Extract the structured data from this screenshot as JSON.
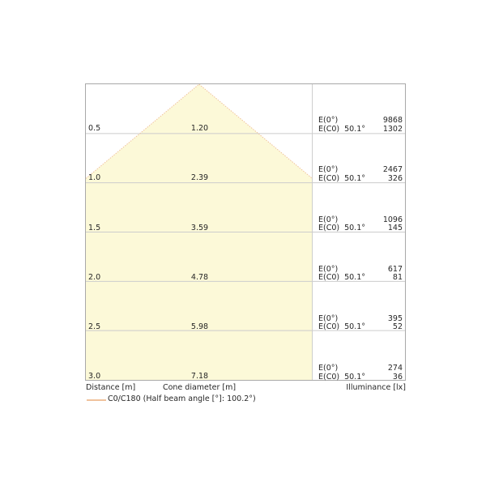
{
  "figure": {
    "axis": {
      "distance": "Distance [m]",
      "cone_diameter": "Cone diameter [m]",
      "illuminance": "Illuminance [lx]"
    },
    "legend": {
      "label": "C0/C180 (Half beam angle [°]: 100.2°)"
    },
    "e_labels": {
      "e0": "E(0°)",
      "ec0": "E(C0)"
    },
    "colors": {
      "cone_fill": "#FCF9D8",
      "cone_edge": "#F0C29C",
      "grid": "#CCCCCC",
      "border": "#A9A9A9",
      "text": "#262626"
    }
  },
  "chart_data": {
    "type": "area",
    "title": "",
    "description": "Luminous cone diagram: beam cone vs. distance with cone diameter and illuminance values",
    "half_beam_angle_deg": 100.2,
    "legend": [
      "C0/C180 (Half beam angle [°]: 100.2°)"
    ],
    "columns": [
      "Distance [m]",
      "Cone diameter [m]",
      "Half beam angle",
      "E(0°) [lx]",
      "E(C0) [lx]"
    ],
    "rows": [
      {
        "distance": "0.5",
        "diameter": "1.20",
        "angle": "50.1°",
        "e0": "9868",
        "ec0": "1302"
      },
      {
        "distance": "1.0",
        "diameter": "2.39",
        "angle": "50.1°",
        "e0": "2467",
        "ec0": "326"
      },
      {
        "distance": "1.5",
        "diameter": "3.59",
        "angle": "50.1°",
        "e0": "1096",
        "ec0": "145"
      },
      {
        "distance": "2.0",
        "diameter": "4.78",
        "angle": "50.1°",
        "e0": "617",
        "ec0": "81"
      },
      {
        "distance": "2.5",
        "diameter": "5.98",
        "angle": "50.1°",
        "e0": "395",
        "ec0": "52"
      },
      {
        "distance": "3.0",
        "diameter": "7.18",
        "angle": "50.1°",
        "e0": "274",
        "ec0": "36"
      }
    ],
    "axis_ranges": {
      "distance_m": [
        0,
        3.0
      ],
      "row_step_m": 0.5
    },
    "grid": true,
    "legend_position": "bottom-left"
  }
}
